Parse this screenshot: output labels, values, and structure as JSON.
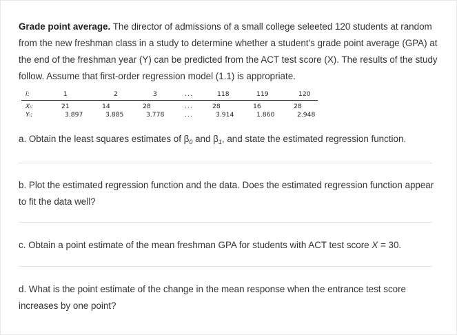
{
  "intro": {
    "heading": "Grade point average.",
    "text": "The director of admissions of a small college seleeted 120 students at random from the new freshman class in a study to determine whether a student's grade point average (GPA) at the end of the freshman year (Y) can be predicted from the ACT test score (X). The results of the study follow. Assume that first-order regression model (1.1) is appropriate."
  },
  "table": {
    "row_labels": [
      "i:",
      "Xᵢ:",
      "Yᵢ:"
    ],
    "i": [
      "1",
      "2",
      "3",
      "...",
      "118",
      "119",
      "120"
    ],
    "x": [
      "21",
      "14",
      "28",
      "...",
      "28",
      "16",
      "28"
    ],
    "y": [
      "3.897",
      "3.885",
      "3.778",
      "...",
      "3.914",
      "1.860",
      "2.948"
    ]
  },
  "questions": {
    "a_pre": "a. Obtain the least squares estimates of β",
    "a_sub0": "0",
    "a_mid": " and β",
    "a_sub1": "1",
    "a_post": ", and state the estimated regression function.",
    "b": "b. Plot the estimated regression function and the data. Does the estimated regression function appear to fit the data well?",
    "c_pre": "c. Obtain a point estimate of the mean freshman GPA for students with ACT test score ",
    "c_var": "X",
    "c_post": " = 30.",
    "d": "d. What is the point estimate of the change in the mean response when the entrance test score increases by one point?"
  }
}
